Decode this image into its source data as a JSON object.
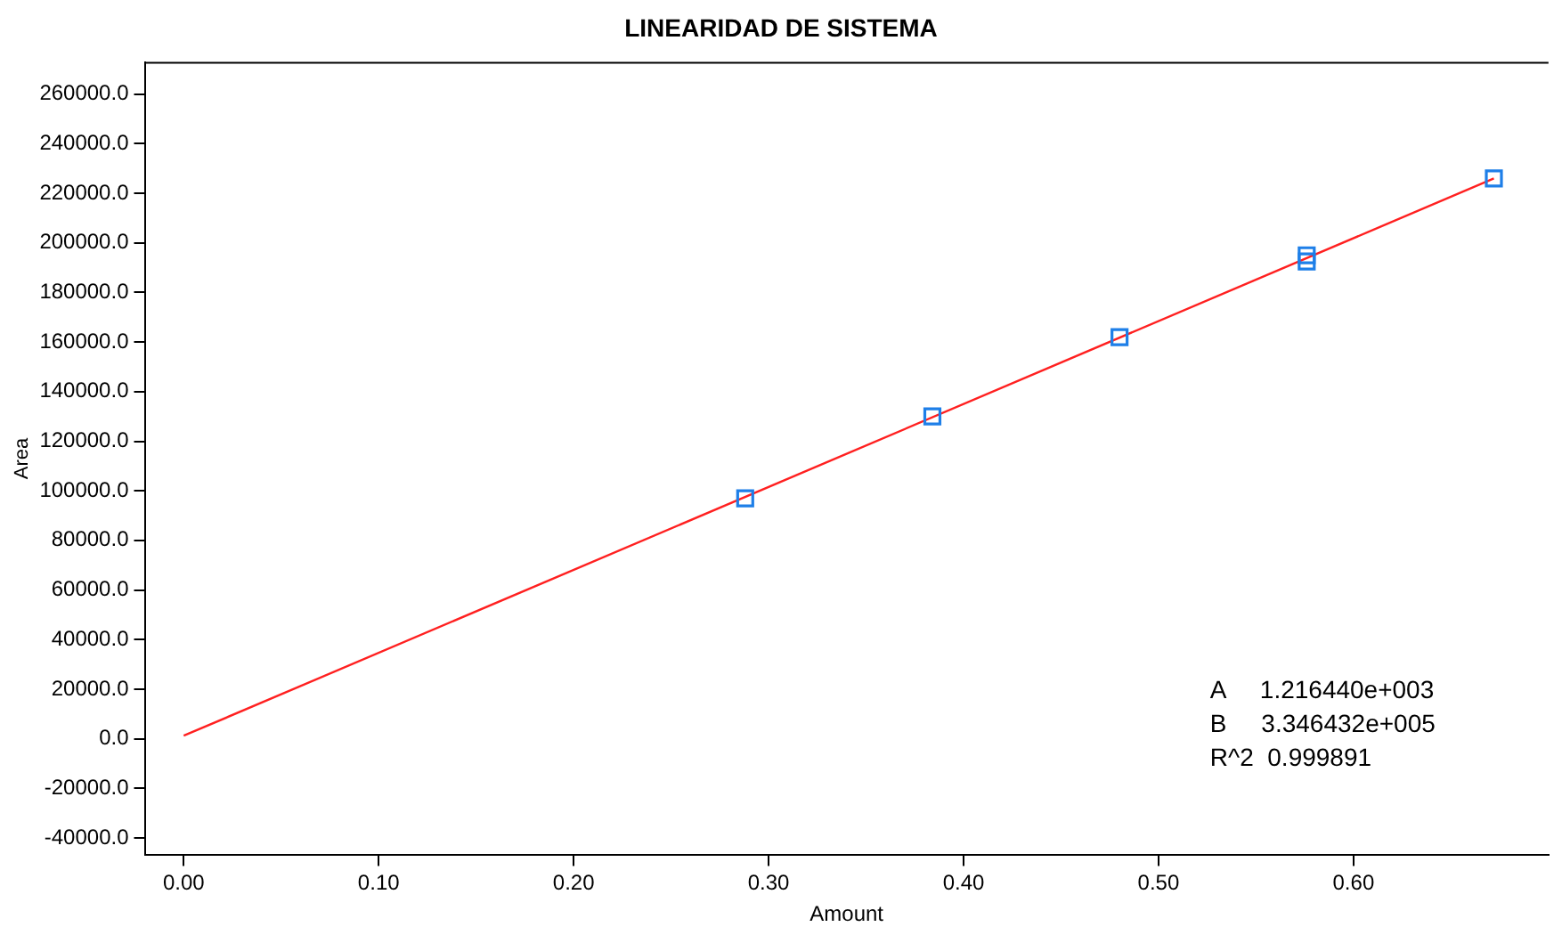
{
  "chart_data": {
    "type": "scatter",
    "title": "LINEARIDAD DE SISTEMA",
    "xlabel": "Amount",
    "ylabel": "Area",
    "series": [
      {
        "type": "scatter",
        "marker": "square",
        "color": "#1e7fe8",
        "x": [
          0.288,
          0.384,
          0.48,
          0.576,
          0.576,
          0.672
        ],
        "values": [
          97000,
          130000,
          162000,
          192500,
          195000,
          226000
        ]
      },
      {
        "type": "line",
        "marker": "none",
        "color": "#ff2020",
        "x": [
          0,
          0.672
        ],
        "values": [
          1200,
          226000
        ]
      }
    ],
    "legend": false,
    "grid": false,
    "xlim": [
      -0.02,
      0.7
    ],
    "xticks": [
      {
        "value": 0,
        "label": "0.00"
      },
      {
        "value": 0.1,
        "label": "0.10"
      },
      {
        "value": 0.2,
        "label": "0.20"
      },
      {
        "value": 0.3,
        "label": "0.30"
      },
      {
        "value": 0.4,
        "label": "0.40"
      },
      {
        "value": 0.5,
        "label": "0.50"
      },
      {
        "value": 0.6,
        "label": "0.60"
      }
    ],
    "ylim": [
      -47000,
      273000
    ],
    "yticks": [
      {
        "value": -40000,
        "label": "-40000.0"
      },
      {
        "value": -20000,
        "label": "-20000.0"
      },
      {
        "value": 0,
        "label": "0.0"
      },
      {
        "value": 20000,
        "label": "20000.0"
      },
      {
        "value": 40000,
        "label": "40000.0"
      },
      {
        "value": 60000,
        "label": "60000.0"
      },
      {
        "value": 80000,
        "label": "80000.0"
      },
      {
        "value": 100000,
        "label": "100000.0"
      },
      {
        "value": 120000,
        "label": "120000.0"
      },
      {
        "value": 140000,
        "label": "140000.0"
      },
      {
        "value": 160000,
        "label": "160000.0"
      },
      {
        "value": 180000,
        "label": "180000.0"
      },
      {
        "value": 200000,
        "label": "200000.0"
      },
      {
        "value": 220000,
        "label": "220000.0"
      },
      {
        "value": 240000,
        "label": "240000.0"
      },
      {
        "value": 260000,
        "label": "260000.0"
      }
    ],
    "annotations": [
      "A     1.216440e+003",
      "B     3.346432e+005",
      "R^2  0.999891"
    ]
  }
}
